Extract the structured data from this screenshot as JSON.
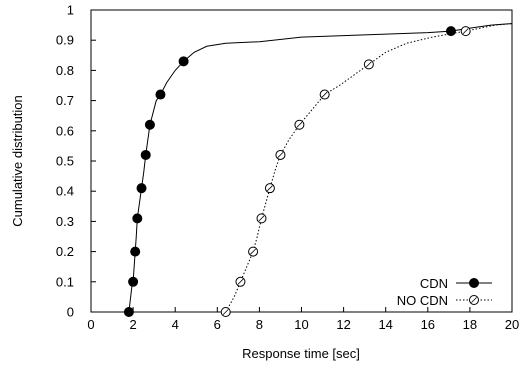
{
  "chart_data": {
    "type": "line",
    "title": "",
    "xlabel": "Response time [sec]",
    "ylabel": "Cumulative distribution",
    "xlim": [
      0,
      20
    ],
    "ylim": [
      0,
      1
    ],
    "x_ticks": [
      "0",
      "2",
      "4",
      "6",
      "8",
      "10",
      "12",
      "14",
      "16",
      "18",
      "20"
    ],
    "y_ticks": [
      "0",
      "0.1",
      "0.2",
      "0.3",
      "0.4",
      "0.5",
      "0.6",
      "0.7",
      "0.8",
      "0.9",
      "1"
    ],
    "grid": false,
    "legend_position": "bottom-right",
    "series": [
      {
        "name": "CDN",
        "line_style": "solid",
        "marker": "filled-circle",
        "color": "#000000",
        "curve": [
          [
            1.8,
            0.0
          ],
          [
            1.85,
            0.03
          ],
          [
            1.9,
            0.06
          ],
          [
            1.95,
            0.09
          ],
          [
            2.0,
            0.1
          ],
          [
            2.05,
            0.15
          ],
          [
            2.1,
            0.2
          ],
          [
            2.15,
            0.25
          ],
          [
            2.2,
            0.31
          ],
          [
            2.3,
            0.36
          ],
          [
            2.4,
            0.41
          ],
          [
            2.5,
            0.46
          ],
          [
            2.6,
            0.52
          ],
          [
            2.7,
            0.57
          ],
          [
            2.8,
            0.62
          ],
          [
            2.95,
            0.66
          ],
          [
            3.1,
            0.7
          ],
          [
            3.3,
            0.72
          ],
          [
            3.6,
            0.76
          ],
          [
            4.0,
            0.8
          ],
          [
            4.4,
            0.83
          ],
          [
            4.9,
            0.86
          ],
          [
            5.5,
            0.88
          ],
          [
            6.4,
            0.89
          ],
          [
            8.0,
            0.895
          ],
          [
            10.0,
            0.91
          ],
          [
            12.0,
            0.915
          ],
          [
            14.0,
            0.92
          ],
          [
            16.0,
            0.925
          ],
          [
            17.1,
            0.93
          ],
          [
            18.0,
            0.94
          ],
          [
            19.0,
            0.95
          ],
          [
            20.0,
            0.955
          ]
        ],
        "markers": [
          [
            1.8,
            0.0
          ],
          [
            2.0,
            0.1
          ],
          [
            2.1,
            0.2
          ],
          [
            2.2,
            0.31
          ],
          [
            2.4,
            0.41
          ],
          [
            2.6,
            0.52
          ],
          [
            2.8,
            0.62
          ],
          [
            3.3,
            0.72
          ],
          [
            4.4,
            0.83
          ],
          [
            17.1,
            0.93
          ]
        ]
      },
      {
        "name": "NO CDN",
        "line_style": "dotted",
        "marker": "open-circle",
        "color": "#000000",
        "curve": [
          [
            6.4,
            0.0
          ],
          [
            6.8,
            0.05
          ],
          [
            7.1,
            0.1
          ],
          [
            7.4,
            0.15
          ],
          [
            7.7,
            0.2
          ],
          [
            7.9,
            0.25
          ],
          [
            8.1,
            0.31
          ],
          [
            8.3,
            0.36
          ],
          [
            8.5,
            0.41
          ],
          [
            8.75,
            0.47
          ],
          [
            9.0,
            0.52
          ],
          [
            9.4,
            0.57
          ],
          [
            9.9,
            0.62
          ],
          [
            10.5,
            0.67
          ],
          [
            11.1,
            0.72
          ],
          [
            11.8,
            0.75
          ],
          [
            12.4,
            0.78
          ],
          [
            13.2,
            0.82
          ],
          [
            14.0,
            0.86
          ],
          [
            15.0,
            0.89
          ],
          [
            16.2,
            0.91
          ],
          [
            17.0,
            0.92
          ],
          [
            17.8,
            0.93
          ],
          [
            18.5,
            0.94
          ],
          [
            19.2,
            0.95
          ],
          [
            20.0,
            0.955
          ]
        ],
        "markers": [
          [
            6.4,
            0.0
          ],
          [
            7.1,
            0.1
          ],
          [
            7.7,
            0.2
          ],
          [
            8.1,
            0.31
          ],
          [
            8.5,
            0.41
          ],
          [
            9.0,
            0.52
          ],
          [
            9.9,
            0.62
          ],
          [
            11.1,
            0.72
          ],
          [
            13.2,
            0.82
          ],
          [
            17.8,
            0.93
          ]
        ]
      }
    ]
  }
}
